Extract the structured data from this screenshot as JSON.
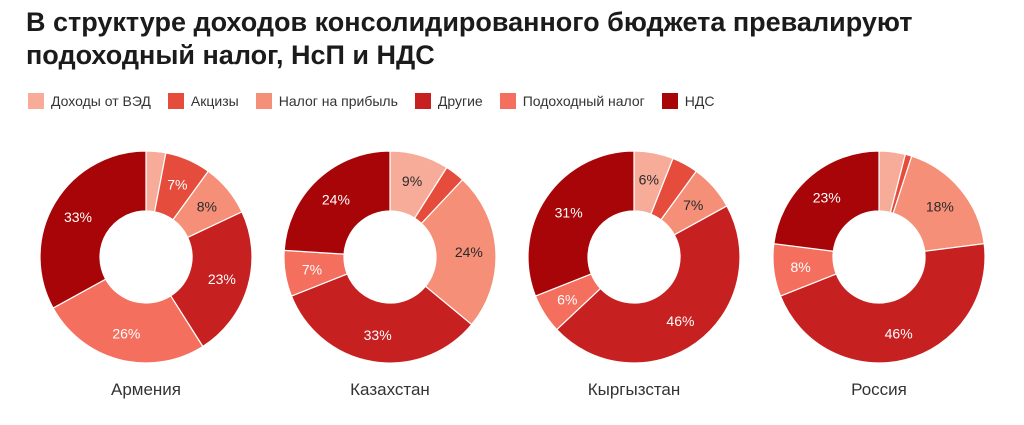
{
  "title": "В структуре доходов консолидированного бюджета превалируют подоходный налог, НсП и НДС",
  "legend": [
    {
      "label": "Доходы от ВЭД",
      "color": "#f6ac98"
    },
    {
      "label": "Акцизы",
      "color": "#e54c3c"
    },
    {
      "label": "Налог на прибыль",
      "color": "#f58f78"
    },
    {
      "label": "Другие",
      "color": "#c72020"
    },
    {
      "label": "Подоходный налог",
      "color": "#f46f5d"
    },
    {
      "label": "НДС",
      "color": "#a70508"
    }
  ],
  "chart_data": [
    {
      "type": "pie",
      "title": "Армения",
      "categories": [
        "Доходы от ВЭД",
        "Акцизы",
        "Налог на прибыль",
        "Другие",
        "Подоходный налог",
        "НДС"
      ],
      "values": [
        3,
        7,
        8,
        23,
        26,
        33
      ],
      "labels": [
        "",
        "7%",
        "8%",
        "23%",
        "26%",
        "33%"
      ]
    },
    {
      "type": "pie",
      "title": "Казахстан",
      "categories": [
        "Доходы от ВЭД",
        "Акцизы",
        "Налог на прибыль",
        "Другие",
        "Подоходный налог",
        "НДС"
      ],
      "values": [
        9,
        3,
        24,
        33,
        7,
        24
      ],
      "labels": [
        "9%",
        "",
        "24%",
        "33%",
        "7%",
        "24%"
      ]
    },
    {
      "type": "pie",
      "title": "Кыргызстан",
      "categories": [
        "Доходы от ВЭД",
        "Акцизы",
        "Налог на прибыль",
        "Другие",
        "Подоходный налог",
        "НДС"
      ],
      "values": [
        6,
        4,
        7,
        46,
        6,
        31
      ],
      "labels": [
        "6%",
        "",
        "7%",
        "46%",
        "6%",
        "31%"
      ]
    },
    {
      "type": "pie",
      "title": "Россия",
      "categories": [
        "Доходы от ВЭД",
        "Акцизы",
        "Налог на прибыль",
        "Другие",
        "Подоходный налог",
        "НДС"
      ],
      "values": [
        4,
        1,
        18,
        46,
        8,
        23
      ],
      "labels": [
        "",
        "",
        "18%",
        "46%",
        "8%",
        "23%"
      ]
    }
  ]
}
